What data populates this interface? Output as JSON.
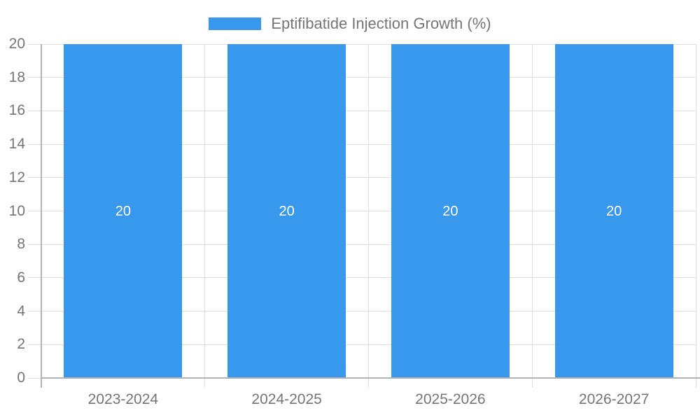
{
  "chart_data": {
    "type": "bar",
    "title": "Eptifibatide Injection Growth (%)",
    "legend": {
      "label": "Eptifibatide Injection Growth (%)",
      "position": "top-center"
    },
    "categories": [
      "2023-2024",
      "2024-2025",
      "2025-2026",
      "2026-2027"
    ],
    "series": [
      {
        "name": "Eptifibatide Injection Growth (%)",
        "values": [
          20,
          20,
          20,
          20
        ]
      }
    ],
    "bar_value_labels": [
      "20",
      "20",
      "20",
      "20"
    ],
    "xlabel": "",
    "ylabel": "",
    "ylim": [
      0,
      20
    ],
    "yticks": [
      0,
      2,
      4,
      6,
      8,
      10,
      12,
      14,
      16,
      18,
      20
    ],
    "grid": true,
    "legend_on": true,
    "colors": {
      "bar": "#3899ec",
      "grid": "#e0e0e0",
      "axis": "#b3b3b3",
      "text": "#757575",
      "bar_label": "#ffffff",
      "background": "#ffffff"
    }
  }
}
